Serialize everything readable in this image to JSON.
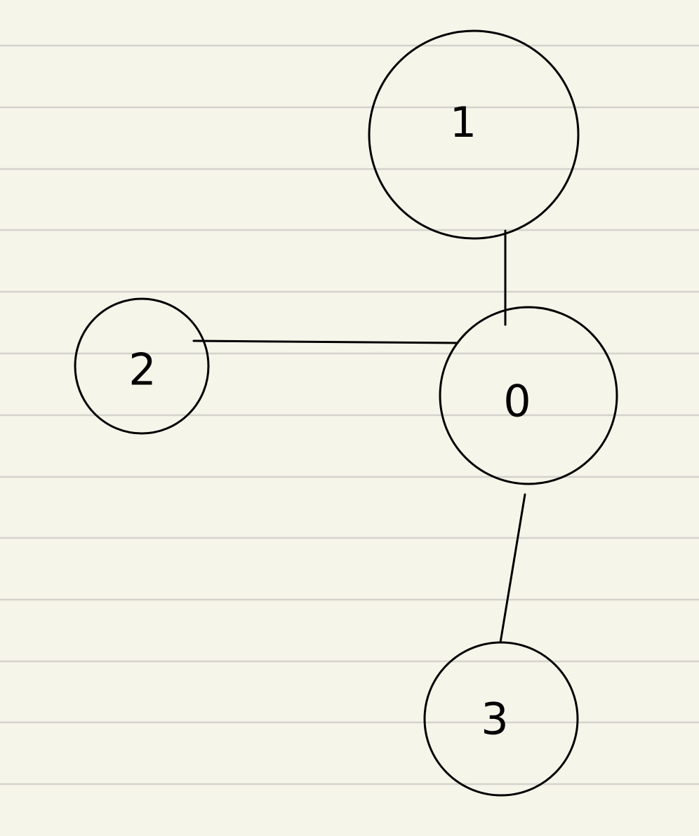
{
  "paper": {
    "background_color": "#f6f5ea",
    "rule_color": "#d3d3cc"
  },
  "graph": {
    "nodes": [
      {
        "id": "1",
        "label": "1"
      },
      {
        "id": "2",
        "label": "2"
      },
      {
        "id": "0",
        "label": "0"
      },
      {
        "id": "3",
        "label": "3"
      }
    ],
    "edges": [
      {
        "from": "1",
        "to": "0"
      },
      {
        "from": "2",
        "to": "0"
      },
      {
        "from": "0",
        "to": "3"
      }
    ]
  }
}
